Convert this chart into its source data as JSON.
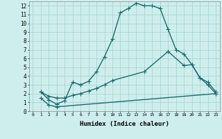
{
  "xlabel": "Humidex (Indice chaleur)",
  "background_color": "#ceeeed",
  "grid_color": "#aad4d3",
  "line_color": "#1a6b6b",
  "xlim": [
    -0.5,
    23.5
  ],
  "ylim": [
    0,
    12.5
  ],
  "xticks": [
    0,
    1,
    2,
    3,
    4,
    5,
    6,
    7,
    8,
    9,
    10,
    11,
    12,
    13,
    14,
    15,
    16,
    17,
    18,
    19,
    20,
    21,
    22,
    23
  ],
  "yticks": [
    0,
    1,
    2,
    3,
    4,
    5,
    6,
    7,
    8,
    9,
    10,
    11,
    12
  ],
  "line1_x": [
    1,
    2,
    3,
    4,
    5,
    6,
    7,
    8,
    9,
    10,
    11,
    12,
    13,
    14,
    15,
    16,
    17,
    18,
    19,
    20,
    21,
    22,
    23
  ],
  "line1_y": [
    2.2,
    1.3,
    0.8,
    1.2,
    3.3,
    3.0,
    3.4,
    4.5,
    6.2,
    8.2,
    11.2,
    11.7,
    12.3,
    12.0,
    12.0,
    11.7,
    9.3,
    7.0,
    6.5,
    5.3,
    3.8,
    3.0,
    2.0
  ],
  "line2_x": [
    1,
    2,
    3,
    4,
    5,
    6,
    7,
    8,
    9,
    10,
    14,
    17,
    19,
    20,
    21,
    22,
    23
  ],
  "line2_y": [
    2.2,
    1.7,
    1.5,
    1.5,
    1.8,
    2.0,
    2.3,
    2.6,
    3.0,
    3.5,
    4.5,
    6.8,
    5.2,
    5.3,
    3.8,
    3.3,
    2.2
  ],
  "line3_x": [
    1,
    2,
    3,
    23
  ],
  "line3_y": [
    1.5,
    0.7,
    0.5,
    2.0
  ],
  "marker": "+",
  "markersize": 4,
  "linewidth": 1.0
}
